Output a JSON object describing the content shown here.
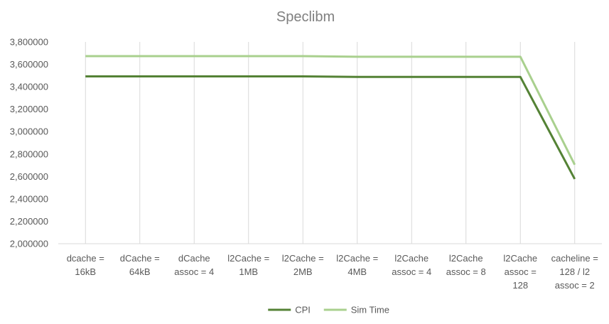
{
  "chart_data": {
    "type": "line",
    "title": "Speclibm",
    "xlabel": "",
    "ylabel": "",
    "categories": [
      [
        "dcache =",
        "16kB"
      ],
      [
        "dCache =",
        "64kB"
      ],
      [
        "dCache",
        "assoc = 4"
      ],
      [
        "l2Cache =",
        "1MB"
      ],
      [
        "l2Cache =",
        "2MB"
      ],
      [
        "l2Cache =",
        "4MB"
      ],
      [
        "l2Cache",
        "assoc = 4"
      ],
      [
        "l2Cache",
        "assoc = 8"
      ],
      [
        "l2Cache",
        "assoc =",
        "128"
      ],
      [
        "cacheline =",
        "128 / l2",
        "assoc = 2"
      ]
    ],
    "ylim": [
      2000000,
      3800000
    ],
    "yticks": [
      2000000,
      2200000,
      2400000,
      2600000,
      2800000,
      3000000,
      3200000,
      3400000,
      3600000,
      3800000
    ],
    "ytick_labels": [
      "2,000000",
      "2,200000",
      "2,400000",
      "2,600000",
      "2,800000",
      "3,000000",
      "3,200000",
      "3,400000",
      "3,600000",
      "3,800000"
    ],
    "grid": "vertical",
    "legend": "bottom",
    "series": [
      {
        "name": "CPI",
        "color": "#548235",
        "values": [
          3493000,
          3493000,
          3493000,
          3493000,
          3493000,
          3488000,
          3488000,
          3488000,
          3488000,
          2577000
        ]
      },
      {
        "name": "Sim Time",
        "color": "#a9d08e",
        "values": [
          3673000,
          3673000,
          3673000,
          3673000,
          3673000,
          3668000,
          3668000,
          3668000,
          3668000,
          2705000
        ]
      }
    ]
  }
}
